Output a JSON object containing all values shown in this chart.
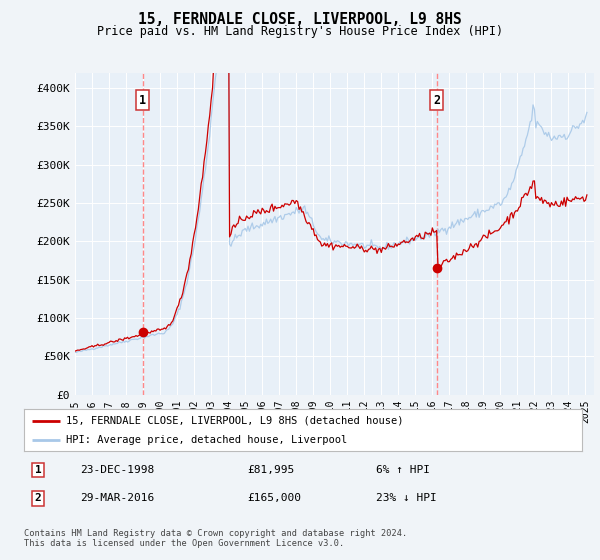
{
  "title": "15, FERNDALE CLOSE, LIVERPOOL, L9 8HS",
  "subtitle": "Price paid vs. HM Land Registry's House Price Index (HPI)",
  "ylim": [
    0,
    420000
  ],
  "yticks": [
    0,
    50000,
    100000,
    150000,
    200000,
    250000,
    300000,
    350000,
    400000
  ],
  "ytick_labels": [
    "£0",
    "£50K",
    "£100K",
    "£150K",
    "£200K",
    "£250K",
    "£300K",
    "£350K",
    "£400K"
  ],
  "sale1_x": 1998.97,
  "sale1_price": 81995,
  "sale1_date_str": "23-DEC-1998",
  "sale1_price_str": "£81,995",
  "sale1_hpi_str": "6% ↑ HPI",
  "sale2_x": 2016.25,
  "sale2_price": 165000,
  "sale2_date_str": "29-MAR-2016",
  "sale2_price_str": "£165,000",
  "sale2_hpi_str": "23% ↓ HPI",
  "hpi_color": "#a8c8e8",
  "price_color": "#cc0000",
  "vline_color": "#ff8888",
  "dot_color": "#cc0000",
  "bg_color": "#f0f4f8",
  "plot_bg_color": "#e8f0f8",
  "grid_color": "#ffffff",
  "legend_label1": "15, FERNDALE CLOSE, LIVERPOOL, L9 8HS (detached house)",
  "legend_label2": "HPI: Average price, detached house, Liverpool",
  "footer": "Contains HM Land Registry data © Crown copyright and database right 2024.\nThis data is licensed under the Open Government Licence v3.0.",
  "xlim_start": 1995.0,
  "xlim_end": 2025.5
}
